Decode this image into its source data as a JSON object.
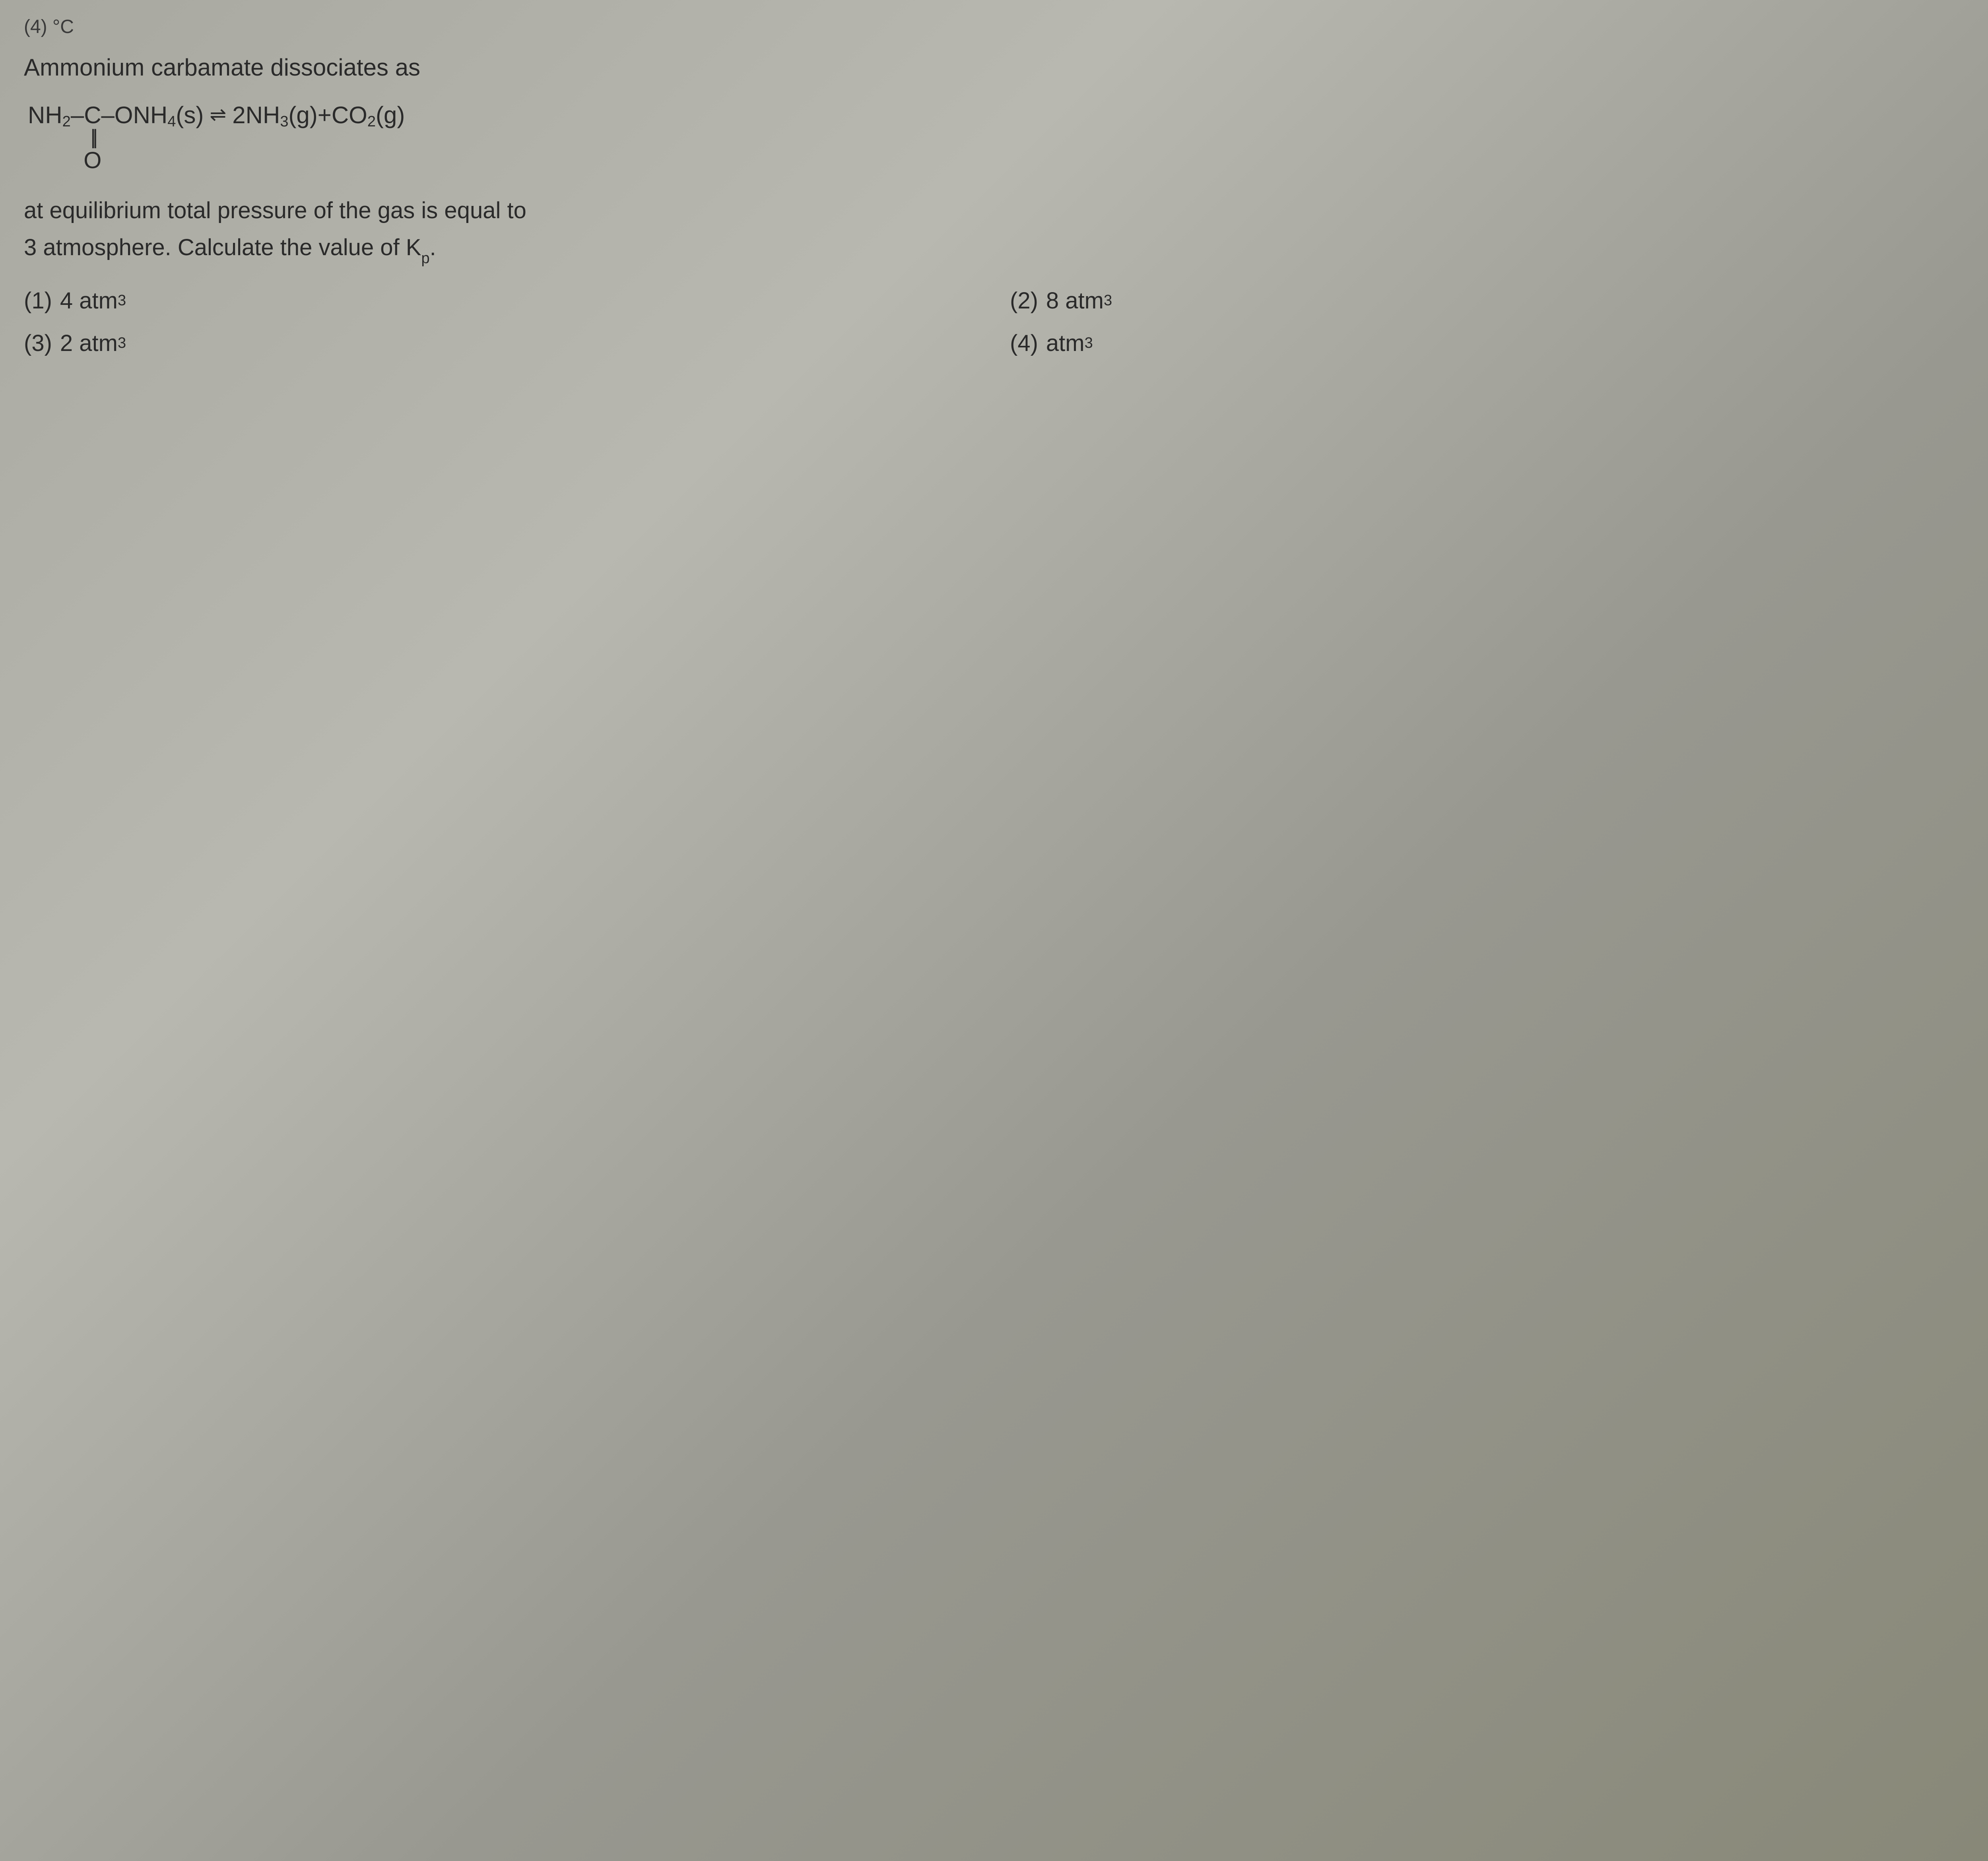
{
  "partial_top": "(4) °C",
  "intro": "Ammonium carbamate dissociates as",
  "equation": {
    "lhs_nh2": "NH",
    "lhs_nh2_sub": "2",
    "dash1": " – ",
    "c": "C",
    "dash2": " – ",
    "onh4": "ONH",
    "onh4_sub": "4",
    "state_s": "(s)",
    "equilibrium": "⇌",
    "coef2": "2",
    "nh3": "NH",
    "nh3_sub": "3",
    "state_g1": "(g)",
    "plus": " + ",
    "co2": "CO",
    "co2_sub": "2",
    "state_g2": "(g)",
    "double_bond": "||",
    "oxygen": "O"
  },
  "description_line1": "at equilibrium total pressure of the gas is equal to",
  "description_line2_a": "3 atmosphere. Calculate the value of K",
  "description_line2_sub": "p",
  "description_line2_end": ".",
  "options": [
    {
      "num": "(1)",
      "val": "4 atm",
      "sup": "3"
    },
    {
      "num": "(2)",
      "val": "8 atm",
      "sup": "3"
    },
    {
      "num": "(3)",
      "val": "2 atm",
      "sup": "3"
    },
    {
      "num": "(4)",
      "val": "atm",
      "sup": "3"
    }
  ],
  "colors": {
    "text": "#2a2a2a",
    "bg_light": "#b8b8b0",
    "bg_dark": "#888878"
  },
  "typography": {
    "body_fontsize": 60,
    "sub_fontsize": 38
  }
}
